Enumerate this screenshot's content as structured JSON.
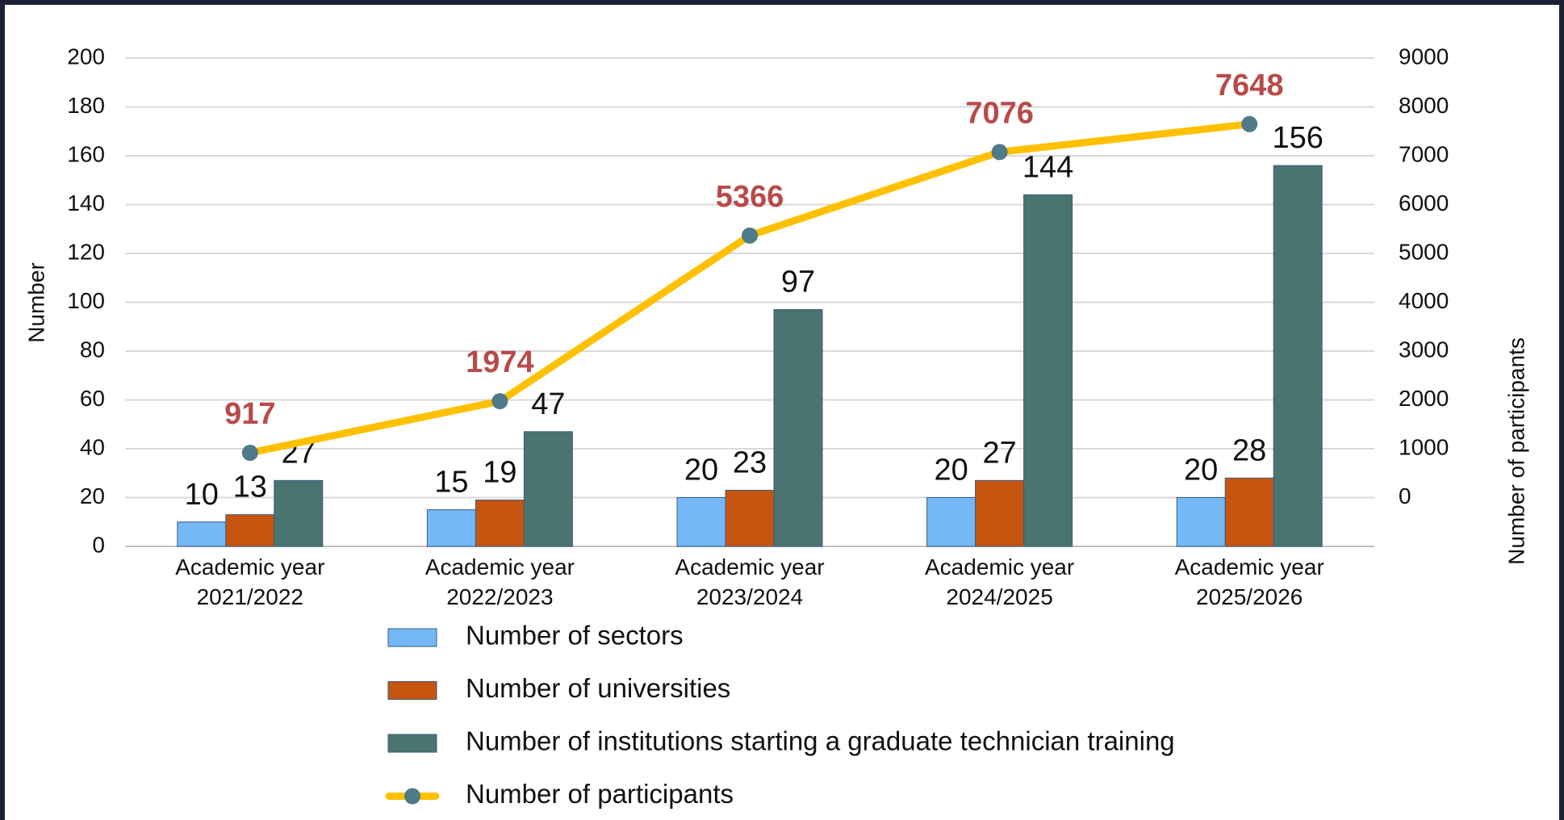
{
  "chart_data": {
    "type": "bar",
    "categories": [
      "Academic year 2021/2022",
      "Academic year 2022/2023",
      "Academic year 2023/2024",
      "Academic year 2024/2025",
      "Academic year 2025/2026"
    ],
    "ylabel": "Number",
    "y2label": "Number of participants",
    "ylim": [
      0,
      200
    ],
    "yticks": [
      0,
      20,
      40,
      60,
      80,
      100,
      120,
      140,
      160,
      180,
      200
    ],
    "y2lim": [
      -1000,
      9000
    ],
    "y2ticks": [
      0,
      1000,
      2000,
      3000,
      4000,
      5000,
      6000,
      7000,
      8000,
      9000
    ],
    "grid": true,
    "legend": "bottom",
    "series": [
      {
        "name": "Number of sectors",
        "type": "bar",
        "color": "#74b8f7",
        "values": [
          10,
          15,
          20,
          20,
          20
        ]
      },
      {
        "name": "Number of universities",
        "type": "bar",
        "color": "#c65510",
        "values": [
          13,
          19,
          23,
          27,
          28
        ]
      },
      {
        "name": "Number of institutions starting a graduate technician training",
        "type": "bar",
        "color": "#4a7470",
        "values": [
          27,
          47,
          97,
          144,
          156
        ]
      },
      {
        "name": "Number of participants",
        "type": "line",
        "axis": "y2",
        "color": "#ffc000",
        "marker_color": "#4f7a87",
        "label_color": "#b94a4a",
        "values": [
          917,
          1974,
          5366,
          7076,
          7648
        ]
      }
    ]
  }
}
